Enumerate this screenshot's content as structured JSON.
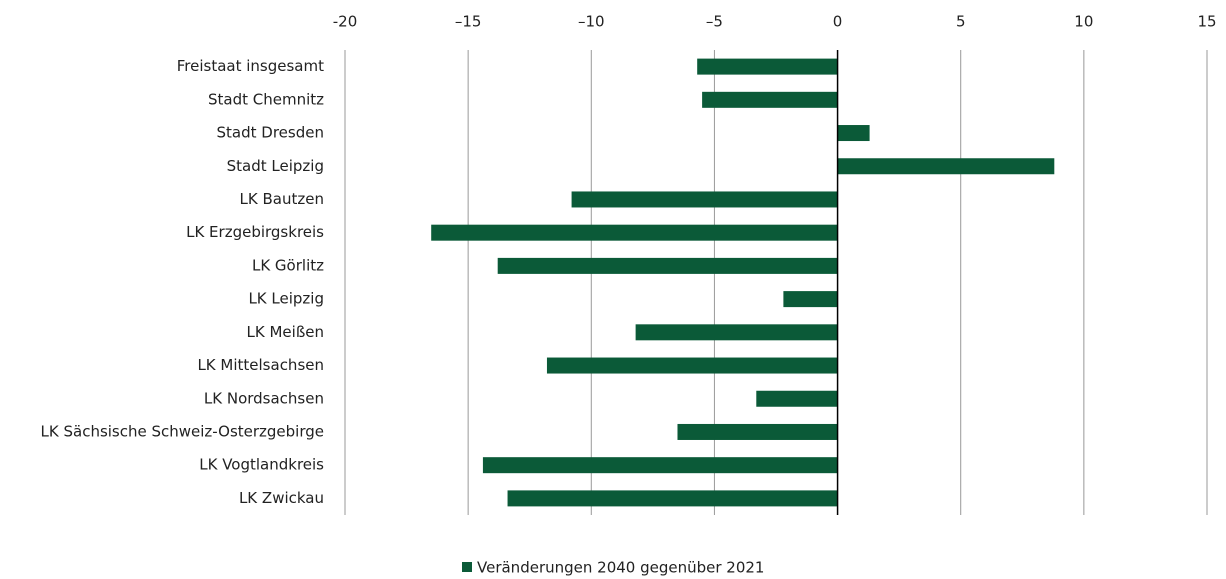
{
  "chart_data": {
    "type": "bar",
    "orientation": "horizontal",
    "categories": [
      "Freistaat insgesamt",
      "Stadt Chemnitz",
      "Stadt Dresden",
      "Stadt Leipzig",
      "LK Bautzen",
      "LK Erzgebirgskreis",
      "LK Görlitz",
      "LK Leipzig",
      "LK Meißen",
      "LK Mittelsachsen",
      "LK Nordsachsen",
      "LK Sächsische Schweiz-Osterzgebirge",
      "LK Vogtlandkreis",
      "LK Zwickau"
    ],
    "series": [
      {
        "name": "Veränderungen 2040 gegenüber 2021",
        "color": "#0b5a38",
        "values": [
          -5.7,
          -5.5,
          1.3,
          8.8,
          -10.8,
          -16.5,
          -13.8,
          -2.2,
          -8.2,
          -11.8,
          -3.3,
          -6.5,
          -14.4,
          -13.4
        ]
      }
    ],
    "xlim": [
      -20,
      15
    ],
    "xticks": [
      -20,
      {
        "value": -15,
        "label": "–15"
      },
      {
        "value": -10,
        "label": "–10"
      },
      {
        "value": -5,
        "label": "–5"
      },
      0,
      5,
      10,
      15
    ],
    "grid": true,
    "legend": "bottom"
  }
}
